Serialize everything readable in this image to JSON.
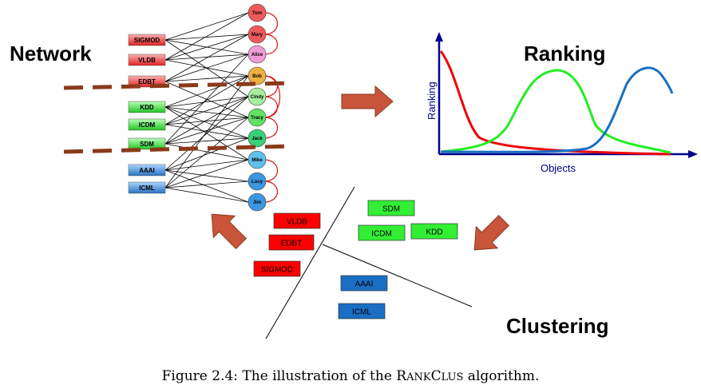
{
  "titles": {
    "network": "Network",
    "ranking": "Ranking",
    "clustering": "Clustering"
  },
  "network": {
    "venues": [
      {
        "label": "SIGMOD",
        "color": "#e84545"
      },
      {
        "label": "VLDB",
        "color": "#e84545"
      },
      {
        "label": "EDBT",
        "color": "#e84545"
      },
      {
        "label": "KDD",
        "color": "#3ccc3c"
      },
      {
        "label": "ICDM",
        "color": "#3ccc3c"
      },
      {
        "label": "SDM",
        "color": "#3ccc3c"
      },
      {
        "label": "AAAI",
        "color": "#3a7fc4"
      },
      {
        "label": "ICML",
        "color": "#3a7fc4"
      }
    ],
    "authors": [
      {
        "label": "Tom",
        "color": "#ee5a5a"
      },
      {
        "label": "Mary",
        "color": "#ee5a5a"
      },
      {
        "label": "Alice",
        "color": "#f09cd6"
      },
      {
        "label": "Bob",
        "color": "#f0b040"
      },
      {
        "label": "Cindy",
        "color": "#a6ef9e"
      },
      {
        "label": "Tracy",
        "color": "#62e262"
      },
      {
        "label": "Jack",
        "color": "#39d07a"
      },
      {
        "label": "Mike",
        "color": "#60c0ec"
      },
      {
        "label": "Lucy",
        "color": "#3c96e0"
      },
      {
        "label": "Jim",
        "color": "#3c96e0"
      }
    ]
  },
  "ranking_chart": {
    "ylabel": "Ranking",
    "xlabel": "Objects",
    "series_colors": [
      "#ee0000",
      "#22ee22",
      "#1a6fc4"
    ]
  },
  "clusters": {
    "red": {
      "color": "#ff0000",
      "items": [
        "VLDB",
        "EDBT",
        "SIGMOD"
      ]
    },
    "green": {
      "color": "#33ee33",
      "items": [
        "SDM",
        "ICDM",
        "KDD"
      ]
    },
    "blue": {
      "color": "#1a6fc4",
      "items": [
        "AAAI",
        "ICML"
      ]
    }
  },
  "arrow_color": "#c8553a",
  "cut_line_color": "#8b3a1a",
  "caption": {
    "prefix": "Figure 2.4: The illustration of the ",
    "r": "R",
    "ank": "ANK",
    "c": "C",
    "lus": "LUS",
    "suffix": " algorithm."
  }
}
